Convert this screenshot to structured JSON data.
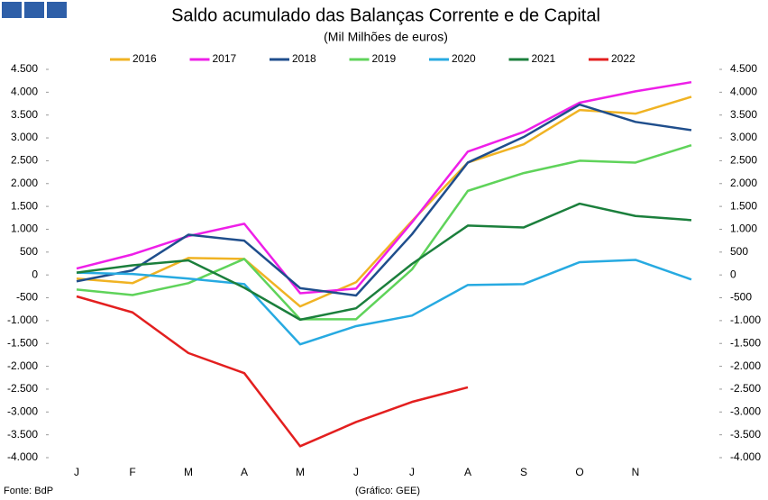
{
  "chart_data": {
    "type": "line",
    "title": "Saldo acumulado das Balanças Corrente e de Capital",
    "subtitle": "(Mil Milhões de euros)",
    "source": "Fonte: BdP",
    "credit": "(Gráfico: GEE)",
    "categories": [
      "J",
      "F",
      "M",
      "A",
      "M",
      "J",
      "J",
      "A",
      "S",
      "O",
      "N",
      null
    ],
    "series": [
      {
        "name": "2016",
        "color": "#f0b323",
        "values": [
          -80,
          -180,
          370,
          350,
          -690,
          -160,
          1180,
          2460,
          2860,
          3610,
          3530,
          3900
        ]
      },
      {
        "name": "2017",
        "color": "#ee1fe8",
        "values": [
          140,
          450,
          850,
          1120,
          -400,
          -300,
          1150,
          2700,
          3130,
          3770,
          4020,
          4220
        ]
      },
      {
        "name": "2018",
        "color": "#1f4e8c",
        "values": [
          -140,
          100,
          880,
          750,
          -290,
          -450,
          890,
          2460,
          3020,
          3730,
          3350,
          3170
        ]
      },
      {
        "name": "2019",
        "color": "#5fd35a",
        "values": [
          -320,
          -440,
          -180,
          350,
          -970,
          -970,
          120,
          1840,
          2230,
          2500,
          2460,
          2840
        ]
      },
      {
        "name": "2020",
        "color": "#27aae1",
        "values": [
          50,
          20,
          -80,
          -200,
          -1520,
          -1120,
          -890,
          -220,
          -200,
          280,
          330,
          -100
        ]
      },
      {
        "name": "2021",
        "color": "#1b7f3c",
        "values": [
          50,
          210,
          320,
          -280,
          -980,
          -730,
          240,
          1080,
          1040,
          1560,
          1290,
          1200
        ]
      },
      {
        "name": "2022",
        "color": "#e31f1f",
        "values": [
          -470,
          -820,
          -1710,
          -2150,
          -3750,
          -3220,
          -2780,
          -2460,
          null,
          null,
          null,
          null
        ]
      }
    ],
    "ylim": [
      -4000,
      4500
    ],
    "yticks": [
      {
        "value": 4500,
        "label": "4.500"
      },
      {
        "value": 4000,
        "label": "4.000"
      },
      {
        "value": 3500,
        "label": "3.500"
      },
      {
        "value": 3000,
        "label": "3.000"
      },
      {
        "value": 2500,
        "label": "2.500"
      },
      {
        "value": 2000,
        "label": "2.000"
      },
      {
        "value": 1500,
        "label": "1.500"
      },
      {
        "value": 1000,
        "label": "1.000"
      },
      500,
      0,
      -500,
      {
        "value": -1000,
        "label": "-1.000"
      },
      {
        "value": -1500,
        "label": "-1.500"
      },
      {
        "value": -2000,
        "label": "-2.000"
      },
      {
        "value": -2500,
        "label": "-2.500"
      },
      {
        "value": -3000,
        "label": "-3.000"
      },
      {
        "value": -3500,
        "label": "-3.500"
      },
      {
        "value": -4000,
        "label": "-4.000"
      }
    ],
    "y2lim": [
      -4000,
      4500
    ],
    "y2ticks": [
      {
        "value": 4500,
        "label": "4.500"
      },
      {
        "value": 4000,
        "label": "4.000"
      },
      {
        "value": 3500,
        "label": "3.500"
      },
      {
        "value": 3000,
        "label": "3.000"
      },
      {
        "value": 2500,
        "label": "2.500"
      },
      {
        "value": 2000,
        "label": "2.000"
      },
      {
        "value": 1500,
        "label": "1.500"
      },
      {
        "value": 1000,
        "label": "1.000"
      },
      500,
      0,
      -500,
      {
        "value": -1000,
        "label": "-1.000"
      },
      {
        "value": -1500,
        "label": "-1.500"
      },
      {
        "value": -2000,
        "label": "-2.000"
      },
      {
        "value": -2500,
        "label": "-2.500"
      },
      {
        "value": -3000,
        "label": "-3.000"
      },
      {
        "value": -3500,
        "label": "-3.500"
      },
      {
        "value": -4000,
        "label": "-4.000"
      }
    ],
    "grid": false,
    "legend": "top"
  }
}
